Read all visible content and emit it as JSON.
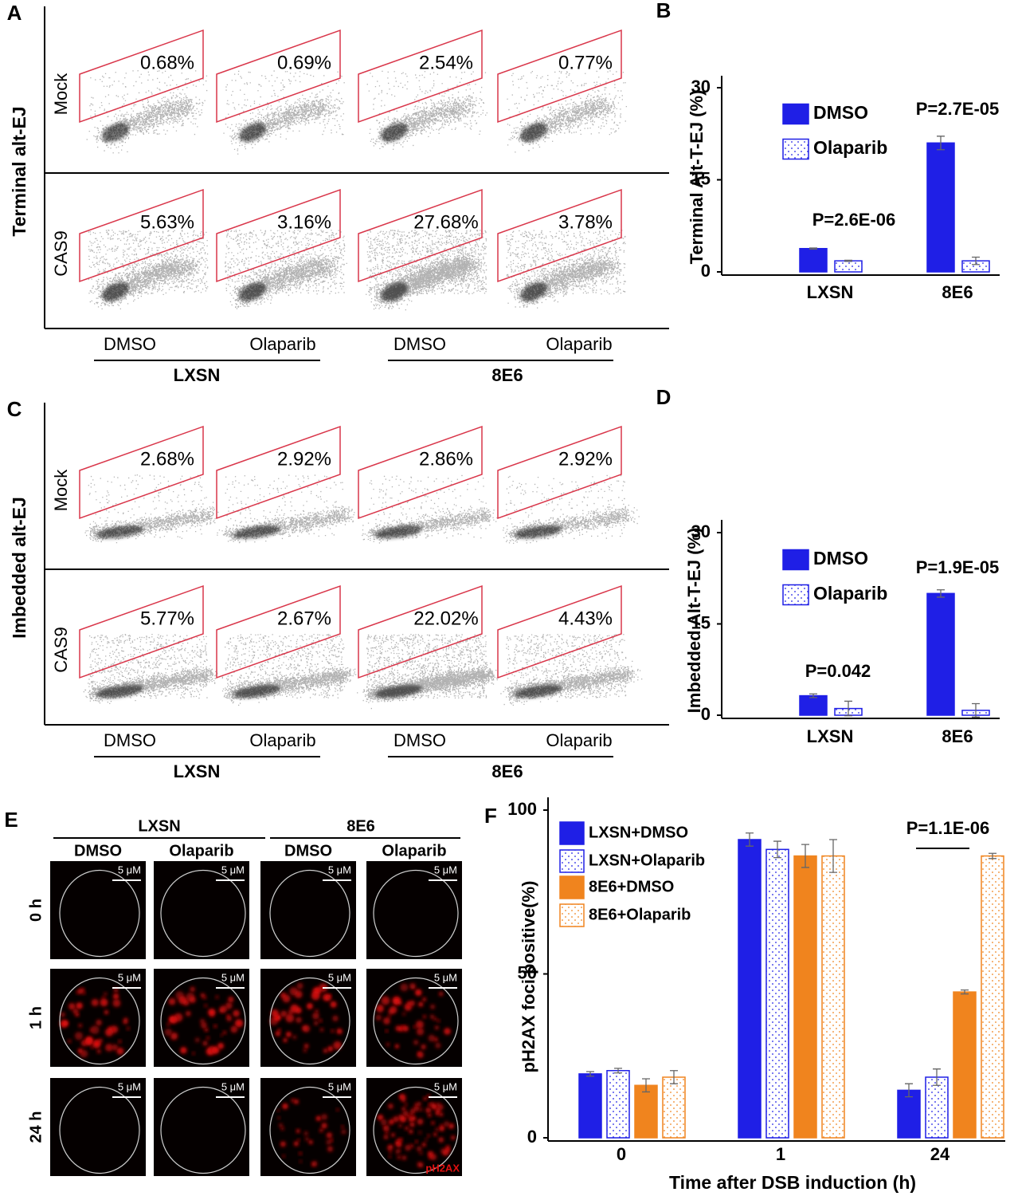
{
  "flow_panels": [
    {
      "label": "A",
      "ylabel": "Terminal alt-EJ",
      "rows": [
        "Mock",
        "CAS9"
      ],
      "percentages": [
        [
          "0.68%",
          "0.69%",
          "2.54%",
          "0.77%"
        ],
        [
          "5.63%",
          "3.16%",
          "27.68%",
          "3.78%"
        ]
      ],
      "columns": [
        "DMSO",
        "Olaparib",
        "DMSO",
        "Olaparib"
      ],
      "groups": [
        "LXSN",
        "8E6"
      ]
    },
    {
      "label": "C",
      "ylabel": "Imbedded alt-EJ",
      "rows": [
        "Mock",
        "CAS9"
      ],
      "percentages": [
        [
          "2.68%",
          "2.92%",
          "2.86%",
          "2.92%"
        ],
        [
          "5.77%",
          "2.67%",
          "22.02%",
          "4.43%"
        ]
      ],
      "columns": [
        "DMSO",
        "Olaparib",
        "DMSO",
        "Olaparib"
      ],
      "groups": [
        "LXSN",
        "8E6"
      ]
    }
  ],
  "microscopy": {
    "label": "E",
    "groups": [
      "LXSN",
      "8E6"
    ],
    "columns": [
      "DMSO",
      "Olaparib",
      "DMSO",
      "Olaparib"
    ],
    "rows": [
      "0 h",
      "1 h",
      "24 h"
    ],
    "scale_bar": "5 μM",
    "stain": "pH2AX"
  },
  "chart_data": [
    {
      "type": "bar",
      "label": "B",
      "ylabel": "Terminal Alt-T-EJ (%)",
      "categories": [
        "LXSN",
        "8E6"
      ],
      "series": [
        {
          "name": "DMSO",
          "color": "#1f1fe6",
          "pattern": "solid",
          "values": [
            3.8,
            21
          ],
          "errors": [
            0.1,
            1.1
          ]
        },
        {
          "name": "Olaparib",
          "color": "#1f1fe6",
          "pattern": "dots",
          "values": [
            1.8,
            1.8
          ],
          "errors": [
            0.1,
            0.6
          ]
        }
      ],
      "ylim": [
        0,
        30
      ],
      "yticks": [
        0,
        15,
        30
      ],
      "annotations": [
        "P=2.6E-06",
        "P=2.7E-05"
      ]
    },
    {
      "type": "bar",
      "label": "D",
      "ylabel": "Imbedded Alt-T-EJ (%)",
      "categories": [
        "LXSN",
        "8E6"
      ],
      "series": [
        {
          "name": "DMSO",
          "color": "#1f1fe6",
          "pattern": "solid",
          "values": [
            3.2,
            20
          ],
          "errors": [
            0.3,
            0.6
          ]
        },
        {
          "name": "Olaparib",
          "color": "#1f1fe6",
          "pattern": "dots",
          "values": [
            1.1,
            0.8
          ],
          "errors": [
            1.2,
            1.1
          ]
        }
      ],
      "ylim": [
        0,
        30
      ],
      "yticks": [
        0,
        15,
        30
      ],
      "annotations": [
        "P=0.042",
        "P=1.9E-05"
      ]
    },
    {
      "type": "bar",
      "label": "F",
      "ylabel": "pH2AX foci positive(%)",
      "xlabel": "Time after DSB induction (h)",
      "categories": [
        "0",
        "1",
        "24"
      ],
      "series": [
        {
          "name": "LXSN+DMSO",
          "color": "#1f1fe6",
          "pattern": "solid",
          "values": [
            19.5,
            91,
            14.5
          ],
          "errors": [
            0.7,
            2,
            2
          ]
        },
        {
          "name": "LXSN+Olaparib",
          "color": "#1f1fe6",
          "pattern": "dots",
          "values": [
            20.5,
            88,
            18.5
          ],
          "errors": [
            0.7,
            2.5,
            2.5
          ]
        },
        {
          "name": "8E6+DMSO",
          "color": "#f0841e",
          "pattern": "solid",
          "values": [
            16,
            86,
            44.5
          ],
          "errors": [
            2,
            3.5,
            0.6
          ]
        },
        {
          "name": "8E6+Olaparib",
          "color": "#f0841e",
          "pattern": "dots",
          "values": [
            18.5,
            86,
            86
          ],
          "errors": [
            2,
            5,
            0.8
          ]
        }
      ],
      "ylim": [
        0,
        100
      ],
      "yticks": [
        0,
        50,
        100
      ],
      "annotations": [
        "P=1.1E-06"
      ]
    }
  ]
}
